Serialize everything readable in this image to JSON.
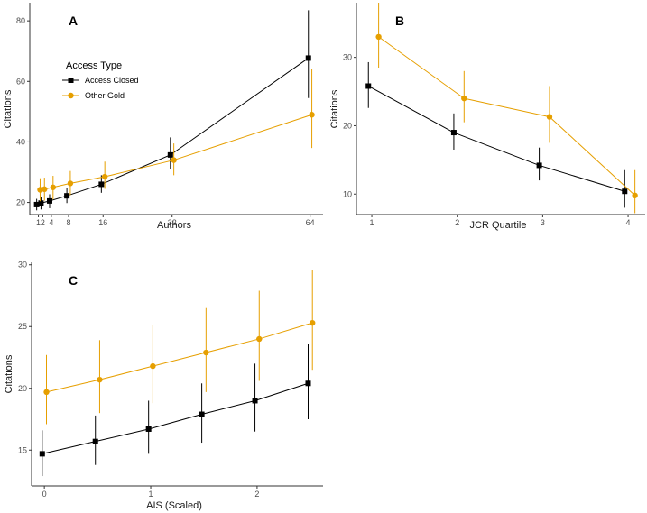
{
  "colors": {
    "access_closed": "#000000",
    "other_gold": "#E69F00",
    "axis": "#333333"
  },
  "legend": {
    "title": "Access Type",
    "entries": [
      {
        "label": "Access Closed",
        "color": "#000000",
        "shape": "square"
      },
      {
        "label": "Other Gold",
        "color": "#E69F00",
        "shape": "circle"
      }
    ]
  },
  "chart_data": [
    {
      "type": "line",
      "panel": "A",
      "xlabel": "Authors",
      "ylabel": "Citations",
      "xlim": [
        -1,
        67
      ],
      "ylim": [
        16,
        86
      ],
      "x_ticks": [
        1,
        2,
        4,
        8,
        16,
        32,
        64
      ],
      "x_tick_labels": [
        "1",
        "2",
        "4",
        "8",
        "16",
        "32",
        "64"
      ],
      "y_ticks": [
        20,
        40,
        60,
        80
      ],
      "y_tick_labels": [
        "20",
        "40",
        "60",
        "80"
      ],
      "series": [
        {
          "name": "Access Closed",
          "x": [
            1,
            2,
            4,
            8,
            16,
            32,
            64
          ],
          "y": [
            19.3,
            19.8,
            20.5,
            22.2,
            26.0,
            35.7,
            67.7
          ],
          "lower": [
            17.4,
            17.7,
            18.1,
            19.8,
            23.2,
            31.0,
            54.5
          ],
          "upper": [
            21.2,
            21.8,
            22.7,
            24.8,
            29.0,
            41.5,
            83.5
          ],
          "offset": -0.4
        },
        {
          "name": "Other Gold",
          "x": [
            1,
            2,
            4,
            8,
            16,
            32,
            64
          ],
          "y": [
            24.2,
            24.4,
            25.0,
            26.3,
            28.5,
            34.0,
            49.0
          ],
          "lower": [
            20.4,
            20.6,
            21.0,
            22.4,
            24.5,
            29.0,
            38.0
          ],
          "upper": [
            28.0,
            28.2,
            28.8,
            30.4,
            33.5,
            39.5,
            64.0
          ],
          "offset": 0.4
        }
      ]
    },
    {
      "type": "line",
      "panel": "B",
      "xlabel": "JCR Quartile",
      "ylabel": "Citations",
      "xlim": [
        0.82,
        4.2
      ],
      "ylim": [
        7,
        38
      ],
      "x_ticks": [
        1,
        2,
        3,
        4
      ],
      "x_tick_labels": [
        "1",
        "2",
        "3",
        "4"
      ],
      "y_ticks": [
        10,
        20,
        30
      ],
      "y_tick_labels": [
        "10",
        "20",
        "30"
      ],
      "series": [
        {
          "name": "Access Closed",
          "x": [
            1,
            2,
            3,
            4
          ],
          "y": [
            25.8,
            19.0,
            14.2,
            10.4
          ],
          "lower": [
            22.6,
            16.5,
            12.0,
            8.0
          ],
          "upper": [
            29.3,
            21.8,
            16.8,
            13.5
          ],
          "offset": -0.04
        },
        {
          "name": "Other Gold",
          "x": [
            1,
            2,
            3,
            4
          ],
          "y": [
            33.0,
            24.0,
            21.3,
            9.8
          ],
          "lower": [
            28.5,
            20.5,
            17.5,
            7.2
          ],
          "upper": [
            38.0,
            28.0,
            25.8,
            13.5
          ],
          "offset": 0.08
        }
      ]
    },
    {
      "type": "line",
      "panel": "C",
      "xlabel": "AIS (Scaled)",
      "ylabel": "Citations",
      "xlim": [
        -0.12,
        2.62
      ],
      "ylim": [
        12.1,
        30.2
      ],
      "x_ticks": [
        0,
        1,
        2
      ],
      "x_tick_labels": [
        "0",
        "1",
        "2"
      ],
      "y_ticks": [
        15,
        20,
        25,
        30
      ],
      "y_tick_labels": [
        "15",
        "20",
        "25",
        "30"
      ],
      "series": [
        {
          "name": "Access Closed",
          "x": [
            0,
            0.5,
            1,
            1.5,
            2,
            2.5
          ],
          "y": [
            14.7,
            15.7,
            16.7,
            17.9,
            19.0,
            20.4
          ],
          "lower": [
            12.9,
            13.8,
            14.7,
            15.6,
            16.5,
            17.5
          ],
          "upper": [
            16.6,
            17.8,
            19.0,
            20.4,
            22.0,
            23.6
          ],
          "offset": -0.02
        },
        {
          "name": "Other Gold",
          "x": [
            0,
            0.5,
            1,
            1.5,
            2,
            2.5
          ],
          "y": [
            19.7,
            20.7,
            21.8,
            22.9,
            24.0,
            25.3
          ],
          "lower": [
            17.1,
            18.0,
            18.8,
            19.7,
            20.6,
            21.5
          ],
          "upper": [
            22.7,
            23.9,
            25.1,
            26.5,
            27.9,
            29.6
          ],
          "offset": 0.02
        }
      ]
    }
  ]
}
